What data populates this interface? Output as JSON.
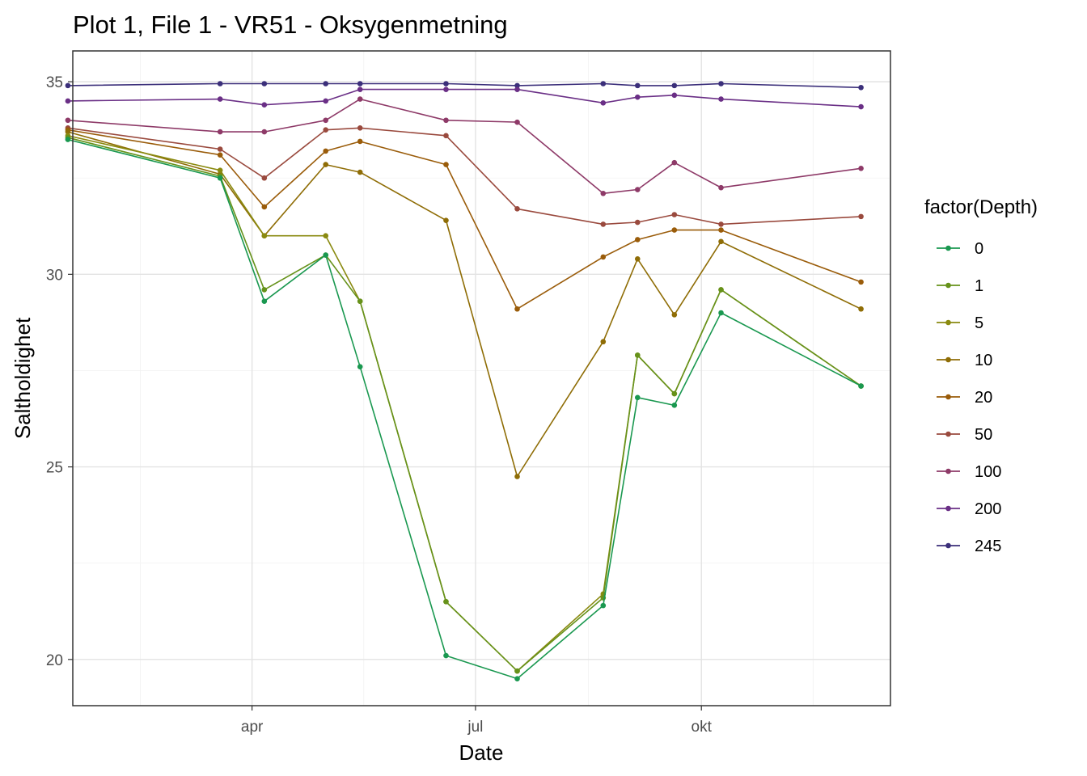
{
  "chart_data": {
    "type": "line",
    "title": "Plot 1, File 1 - VR51  -  Oksygenmetning",
    "xlabel": "Date",
    "ylabel": "Saltholdighet",
    "xlim": [
      "2019-01-18",
      "2019-12-17"
    ],
    "ylim": [
      18.8,
      35.8
    ],
    "x_ticks": [
      {
        "label": "apr",
        "date": "2019-04-01"
      },
      {
        "label": "jul",
        "date": "2019-07-01"
      },
      {
        "label": "okt",
        "date": "2019-10-01"
      }
    ],
    "y_ticks": [
      20,
      25,
      30,
      35
    ],
    "grid": true,
    "legend": {
      "title": "factor(Depth)",
      "position": "right"
    },
    "x": [
      "2019-01-16",
      "2019-03-19",
      "2019-04-06",
      "2019-05-01",
      "2019-05-15",
      "2019-06-19",
      "2019-07-18",
      "2019-08-22",
      "2019-09-05",
      "2019-09-20",
      "2019-10-09",
      "2019-12-05"
    ],
    "series": [
      {
        "name": "0",
        "color": "#1a9850",
        "values": [
          33.5,
          32.5,
          29.3,
          30.5,
          27.6,
          20.1,
          19.5,
          21.4,
          26.8,
          26.6,
          29.0,
          27.1
        ]
      },
      {
        "name": "1",
        "color": "#66921a",
        "values": [
          33.55,
          32.55,
          29.6,
          30.5,
          29.3,
          21.5,
          19.7,
          21.6,
          27.9,
          26.9,
          29.6,
          27.1
        ]
      },
      {
        "name": "5",
        "color": "#8a8a10",
        "values": [
          33.6,
          32.7,
          31.0,
          31.0,
          29.3,
          21.5,
          19.7,
          21.7,
          27.9,
          26.9,
          29.6,
          27.1
        ]
      },
      {
        "name": "10",
        "color": "#8f6d06",
        "values": [
          33.7,
          32.6,
          31.0,
          32.85,
          32.65,
          31.4,
          24.75,
          28.25,
          30.4,
          28.95,
          30.85,
          29.1
        ]
      },
      {
        "name": "20",
        "color": "#9a5c0a",
        "values": [
          33.75,
          33.1,
          31.75,
          33.2,
          33.45,
          32.85,
          29.1,
          30.45,
          30.9,
          31.15,
          31.15,
          29.8
        ]
      },
      {
        "name": "50",
        "color": "#9a4a3e",
        "values": [
          33.8,
          33.25,
          32.5,
          33.75,
          33.8,
          33.6,
          31.7,
          31.3,
          31.35,
          31.55,
          31.3,
          31.5
        ]
      },
      {
        "name": "100",
        "color": "#8e3a68",
        "values": [
          34.0,
          33.7,
          33.7,
          34.0,
          34.55,
          34.0,
          33.95,
          32.1,
          32.2,
          32.9,
          32.25,
          32.75
        ]
      },
      {
        "name": "200",
        "color": "#6a2f86",
        "values": [
          34.5,
          34.55,
          34.4,
          34.5,
          34.8,
          34.8,
          34.8,
          34.45,
          34.6,
          34.65,
          34.55,
          34.35
        ]
      },
      {
        "name": "245",
        "color": "#3b2f7a",
        "values": [
          34.9,
          34.95,
          34.95,
          34.95,
          34.95,
          34.95,
          34.9,
          34.95,
          34.9,
          34.9,
          34.95,
          34.85
        ]
      }
    ]
  }
}
